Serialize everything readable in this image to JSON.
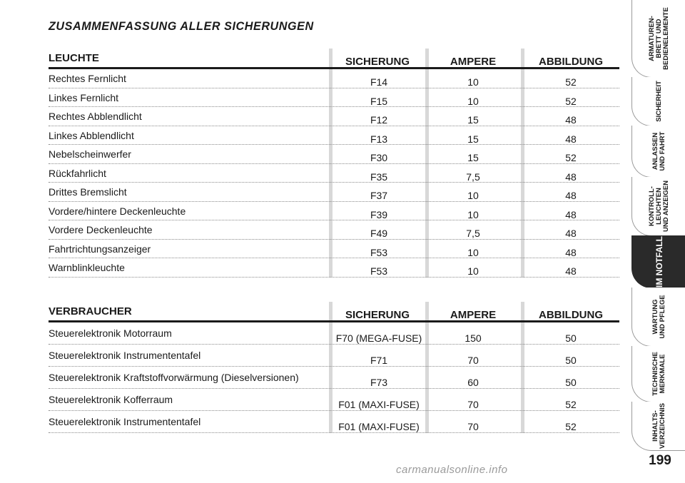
{
  "title": "ZUSAMMENFASSUNG ALLER SICHERUNGEN",
  "table1": {
    "headers": [
      "LEUCHTE",
      "SICHERUNG",
      "AMPERE",
      "ABBILDUNG"
    ],
    "rows": [
      [
        "Rechtes Fernlicht",
        "F14",
        "10",
        "52"
      ],
      [
        "Linkes Fernlicht",
        "F15",
        "10",
        "52"
      ],
      [
        "Rechtes Abblendlicht",
        "F12",
        "15",
        "48"
      ],
      [
        "Linkes Abblendlicht",
        "F13",
        "15",
        "48"
      ],
      [
        "Nebelscheinwerfer",
        "F30",
        "15",
        "52"
      ],
      [
        "Rückfahrlicht",
        "F35",
        "7,5",
        "48"
      ],
      [
        "Drittes Bremslicht",
        "F37",
        "10",
        "48"
      ],
      [
        "Vordere/hintere Deckenleuchte",
        "F39",
        "10",
        "48"
      ],
      [
        "Vordere Deckenleuchte",
        "F49",
        "7,5",
        "48"
      ],
      [
        "Fahrtrichtungsanzeiger",
        "F53",
        "10",
        "48"
      ],
      [
        "Warnblinkleuchte",
        "F53",
        "10",
        "48"
      ]
    ]
  },
  "table2": {
    "headers": [
      "VERBRAUCHER",
      "SICHERUNG",
      "AMPERE",
      "ABBILDUNG"
    ],
    "rows": [
      [
        "Steuerelektronik Motorraum",
        "F70 (MEGA-FUSE)",
        "150",
        "50"
      ],
      [
        "Steuerelektronik Instrumententafel",
        "F71",
        "70",
        "50"
      ],
      [
        "Steuerelektronik Kraftstoffvorwärmung (Dieselversionen)",
        "F73",
        "60",
        "50"
      ],
      [
        "Steuerelektronik Kofferraum",
        "F01 (MAXI-FUSE)",
        "70",
        "52"
      ],
      [
        "Steuerelektronik Instrumententafel",
        "F01 (MAXI-FUSE)",
        "70",
        "52"
      ]
    ]
  },
  "sidetabs": [
    {
      "label": "ARMATUREN-\nBRETT UND\nBEDIENELEMENTE",
      "active": false
    },
    {
      "label": "SICHERHEIT",
      "active": false
    },
    {
      "label": "ANLASSEN\nUND FAHRT",
      "active": false
    },
    {
      "label": "KONTROLL-\nLEUCHTEN\nUND ANZEIGEN",
      "active": false
    },
    {
      "label": "IM NOTFALL",
      "active": true
    },
    {
      "label": "WARTUNG\nUND PFLEGE",
      "active": false
    },
    {
      "label": "TECHNISCHE\nMERKMALE",
      "active": false
    },
    {
      "label": "INHALTS-\nVERZEICHNIS",
      "active": false
    }
  ],
  "page_number": "199",
  "watermark": "carmanualsonline.info"
}
